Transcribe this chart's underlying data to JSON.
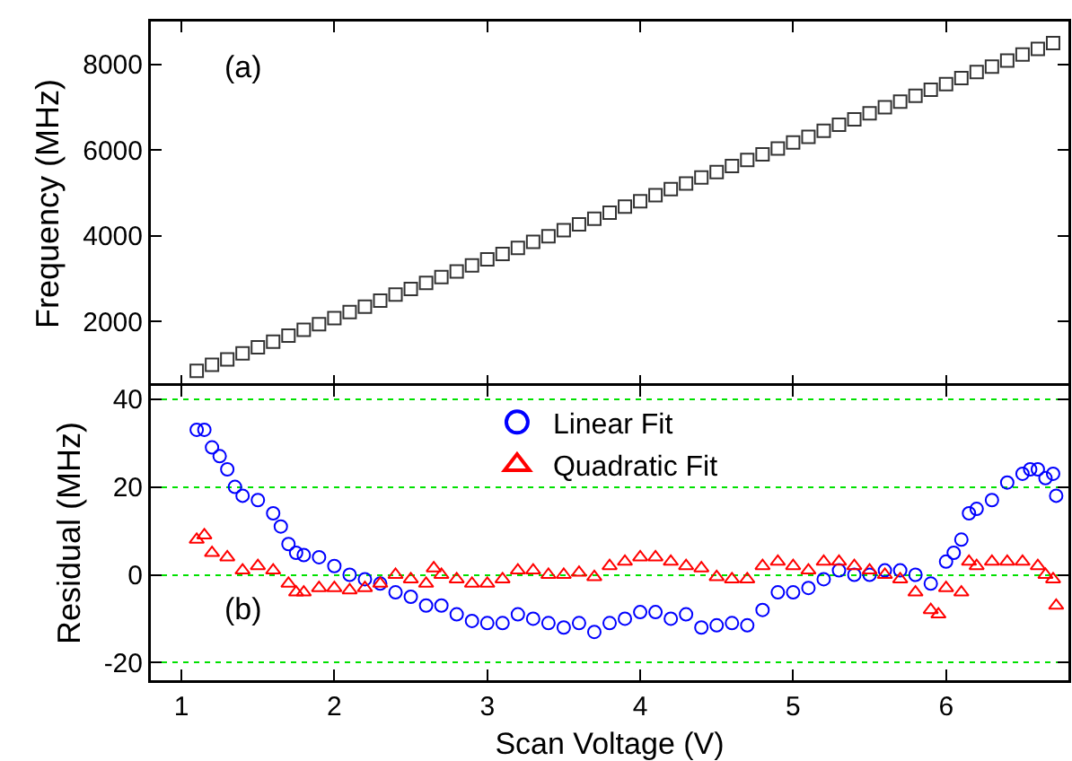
{
  "chart_data": [
    {
      "type": "scatter",
      "ylabel": "Frequency (MHz)",
      "annotations": [
        "(a)"
      ],
      "xlim": [
        0.8,
        6.8
      ],
      "xticks": [
        1,
        2,
        3,
        4,
        5,
        6
      ],
      "ylim": [
        500,
        9000
      ],
      "yticks": [
        2000,
        4000,
        6000,
        8000
      ],
      "tick_labels": "y",
      "grid": false,
      "legend": false,
      "marker": "square",
      "x": [
        1.1,
        1.2,
        1.3,
        1.4,
        1.5,
        1.6,
        1.7,
        1.8,
        1.9,
        2.0,
        2.1,
        2.2,
        2.3,
        2.4,
        2.5,
        2.6,
        2.7,
        2.8,
        2.9,
        3.0,
        3.1,
        3.2,
        3.3,
        3.4,
        3.5,
        3.6,
        3.7,
        3.8,
        3.9,
        4.0,
        4.1,
        4.2,
        4.3,
        4.4,
        4.5,
        4.6,
        4.7,
        4.8,
        4.9,
        5.0,
        5.1,
        5.2,
        5.3,
        5.4,
        5.5,
        5.6,
        5.7,
        5.8,
        5.9,
        6.0,
        6.1,
        6.2,
        6.3,
        6.4,
        6.5,
        6.6,
        6.7
      ],
      "series": [
        {
          "color": "#333333",
          "values": [
            850,
            990,
            1120,
            1260,
            1400,
            1530,
            1670,
            1810,
            1940,
            2080,
            2220,
            2350,
            2490,
            2630,
            2760,
            2900,
            3040,
            3170,
            3310,
            3450,
            3580,
            3720,
            3860,
            3990,
            4130,
            4270,
            4400,
            4540,
            4680,
            4810,
            4950,
            5090,
            5220,
            5360,
            5490,
            5630,
            5770,
            5900,
            6040,
            6180,
            6310,
            6450,
            6590,
            6720,
            6860,
            7000,
            7130,
            7270,
            7410,
            7540,
            7680,
            7820,
            7950,
            8090,
            8230,
            8360,
            8500
          ]
        }
      ]
    },
    {
      "type": "scatter",
      "xlabel": "Scan Voltage (V)",
      "ylabel": "Residual (MHz)",
      "annotations": [
        "(b)"
      ],
      "xlim": [
        0.8,
        6.8
      ],
      "xticks": [
        1,
        2,
        3,
        4,
        5,
        6
      ],
      "ylim": [
        -24,
        43
      ],
      "yticks": [
        -20,
        0,
        20,
        40
      ],
      "grid": "y",
      "legend": "top",
      "series": [
        {
          "name": "Linear Fit",
          "color": "#0000ff",
          "marker": "circle",
          "x": [
            1.1,
            1.15,
            1.2,
            1.25,
            1.3,
            1.35,
            1.4,
            1.5,
            1.6,
            1.65,
            1.7,
            1.75,
            1.8,
            1.9,
            2.0,
            2.1,
            2.2,
            2.3,
            2.4,
            2.5,
            2.6,
            2.7,
            2.8,
            2.9,
            3.0,
            3.1,
            3.2,
            3.3,
            3.4,
            3.5,
            3.6,
            3.7,
            3.8,
            3.9,
            4.0,
            4.1,
            4.2,
            4.3,
            4.4,
            4.5,
            4.6,
            4.7,
            4.8,
            4.9,
            5.0,
            5.1,
            5.2,
            5.3,
            5.4,
            5.5,
            5.6,
            5.7,
            5.8,
            5.9,
            6.0,
            6.05,
            6.1,
            6.15,
            6.2,
            6.3,
            6.4,
            6.5,
            6.55,
            6.6,
            6.65,
            6.7,
            6.72
          ],
          "values": [
            33,
            33,
            29,
            27,
            24,
            20,
            18,
            17,
            14,
            11,
            7,
            5,
            4.5,
            4,
            2,
            0,
            -1,
            -2,
            -4,
            -5,
            -7,
            -7,
            -9,
            -10.5,
            -11,
            -11,
            -9,
            -10,
            -11,
            -12,
            -11,
            -13,
            -11,
            -10,
            -8.5,
            -8.5,
            -10,
            -9,
            -12,
            -11.5,
            -11,
            -11.5,
            -8,
            -4,
            -4,
            -3,
            -1,
            1,
            0,
            0,
            1,
            1,
            0,
            -2,
            3,
            5,
            8,
            14,
            15,
            17,
            21,
            23,
            24,
            24,
            22,
            23,
            18
          ]
        },
        {
          "name": "Quadratic Fit",
          "color": "#ff0000",
          "marker": "triangle",
          "x": [
            1.1,
            1.15,
            1.2,
            1.3,
            1.4,
            1.5,
            1.6,
            1.7,
            1.75,
            1.8,
            1.9,
            2.0,
            2.1,
            2.2,
            2.3,
            2.4,
            2.5,
            2.6,
            2.65,
            2.7,
            2.8,
            2.9,
            3.0,
            3.1,
            3.2,
            3.3,
            3.4,
            3.5,
            3.6,
            3.7,
            3.8,
            3.9,
            4.0,
            4.1,
            4.2,
            4.3,
            4.4,
            4.5,
            4.6,
            4.7,
            4.8,
            4.9,
            5.0,
            5.1,
            5.2,
            5.3,
            5.4,
            5.5,
            5.6,
            5.7,
            5.8,
            5.9,
            5.95,
            6.0,
            6.1,
            6.15,
            6.2,
            6.3,
            6.4,
            6.5,
            6.6,
            6.65,
            6.7,
            6.72
          ],
          "values": [
            8,
            9,
            5,
            4,
            1,
            2,
            1,
            -2,
            -4,
            -4,
            -3,
            -3,
            -3.5,
            -3,
            -2,
            0,
            -1,
            -2,
            1.5,
            0,
            -1,
            -2,
            -2,
            -1,
            1,
            1,
            0,
            0,
            0.5,
            -0.5,
            2,
            3,
            4,
            4,
            3,
            2,
            1.5,
            -0.5,
            -1,
            -1,
            2,
            3,
            2,
            1,
            3,
            3,
            2,
            1,
            0,
            -1,
            -4,
            -8,
            -9,
            -3,
            -4,
            3,
            2,
            3,
            3,
            3,
            2,
            0,
            -1,
            -7
          ]
        }
      ]
    }
  ]
}
